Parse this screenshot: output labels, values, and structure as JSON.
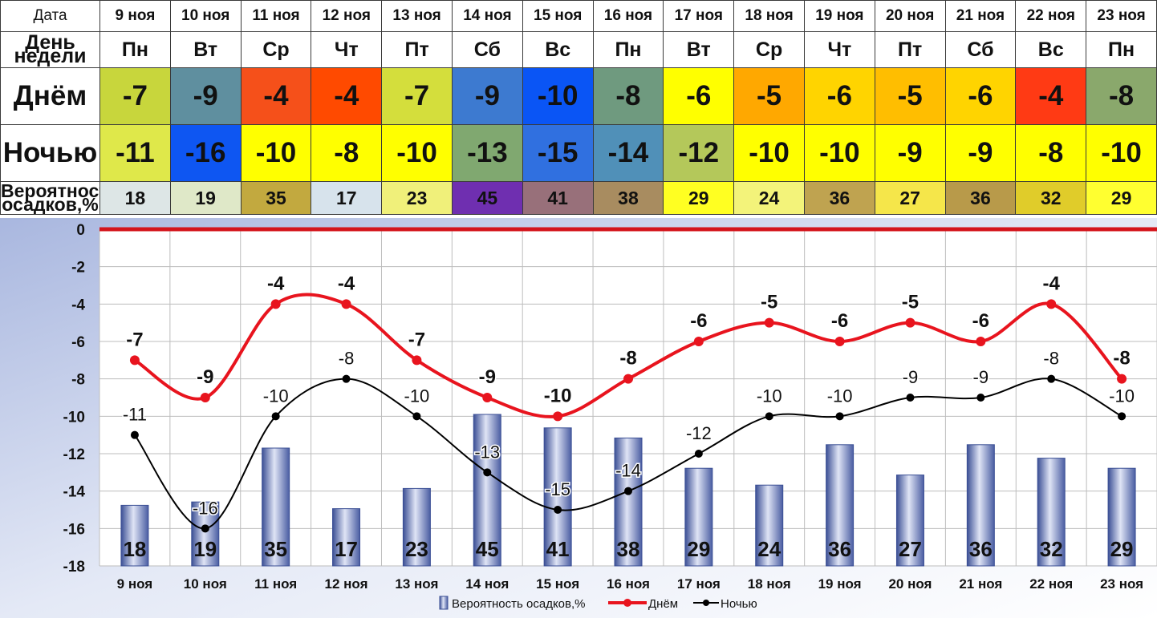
{
  "table": {
    "labels": {
      "date": "Дата",
      "weekday": "День недели",
      "day": "Днём",
      "night": "Ночью",
      "probability": "Вероятность осадков,%"
    },
    "dates": [
      "9 ноя",
      "10 ноя",
      "11 ноя",
      "12 ноя",
      "13 ноя",
      "14 ноя",
      "15 ноя",
      "16 ноя",
      "17 ноя",
      "18 ноя",
      "19 ноя",
      "20 ноя",
      "21 ноя",
      "22 ноя",
      "23 ноя"
    ],
    "weekdays": [
      "Пн",
      "Вт",
      "Ср",
      "Чт",
      "Пт",
      "Сб",
      "Вс",
      "Пн",
      "Вт",
      "Ср",
      "Чт",
      "Пт",
      "Сб",
      "Вс",
      "Пн"
    ],
    "day_values": [
      "-7",
      "-9",
      "-4",
      "-4",
      "-7",
      "-9",
      "-10",
      "-8",
      "-6",
      "-5",
      "-6",
      "-5",
      "-6",
      "-4",
      "-8"
    ],
    "night_values": [
      "-11",
      "-16",
      "-10",
      "-8",
      "-10",
      "-13",
      "-15",
      "-14",
      "-12",
      "-10",
      "-10",
      "-9",
      "-9",
      "-8",
      "-10"
    ],
    "probability_values": [
      "18",
      "19",
      "35",
      "17",
      "23",
      "45",
      "41",
      "38",
      "29",
      "24",
      "36",
      "27",
      "36",
      "32",
      "29"
    ],
    "day_colors": [
      "#c8d63c",
      "#5f8f9f",
      "#f5501a",
      "#ff4a00",
      "#d4de3c",
      "#3d7ad0",
      "#0a55f5",
      "#6f9a7f",
      "#ffff00",
      "#ffa800",
      "#ffd400",
      "#ffbe00",
      "#ffd400",
      "#ff3a14",
      "#8aa86c"
    ],
    "night_colors": [
      "#dfe84a",
      "#0e56f2",
      "#ffff00",
      "#ffff00",
      "#ffff00",
      "#80a870",
      "#3070e0",
      "#5090b8",
      "#b4c85a",
      "#ffff00",
      "#ffff00",
      "#ffff00",
      "#ffff00",
      "#ffff00",
      "#ffff00"
    ],
    "prob_colors": [
      "#dde6e6",
      "#dfe8c8",
      "#c2a93f",
      "#d7e3ec",
      "#f0f07a",
      "#6f2fb0",
      "#98707a",
      "#a88c60",
      "#ffff22",
      "#f3f37a",
      "#bfa350",
      "#f5e64a",
      "#b89a4a",
      "#e0cc2a",
      "#ffff30"
    ]
  },
  "chart_data": {
    "type": "bar",
    "categories": [
      "9 ноя",
      "10 ноя",
      "11 ноя",
      "12 ноя",
      "13 ноя",
      "14 ноя",
      "15 ноя",
      "16 ноя",
      "17 ноя",
      "18 ноя",
      "19 ноя",
      "20 ноя",
      "21 ноя",
      "22 ноя",
      "23 ноя"
    ],
    "series": [
      {
        "name": "Вероятность осадков,%",
        "type": "bar",
        "values": [
          18,
          19,
          35,
          17,
          23,
          45,
          41,
          38,
          29,
          24,
          36,
          27,
          36,
          32,
          29
        ],
        "color": "#6a7fc0"
      },
      {
        "name": "Днём",
        "type": "line",
        "values": [
          -7,
          -9,
          -4,
          -4,
          -7,
          -9,
          -10,
          -8,
          -6,
          -5,
          -6,
          -5,
          -6,
          -4,
          -8
        ],
        "color": "#e8141e"
      },
      {
        "name": "Ночью",
        "type": "line",
        "values": [
          -11,
          -16,
          -10,
          -8,
          -10,
          -13,
          -15,
          -14,
          -12,
          -10,
          -10,
          -9,
          -9,
          -8,
          -10
        ],
        "color": "#000000"
      }
    ],
    "ylim": [
      -18,
      0
    ],
    "yticks": [
      "0",
      "-2",
      "-4",
      "-6",
      "-8",
      "-10",
      "-12",
      "-14",
      "-16",
      "-18"
    ],
    "grid": true,
    "legend_position": "bottom"
  }
}
